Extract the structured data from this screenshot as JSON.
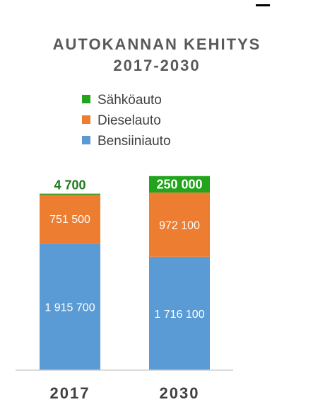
{
  "chart_data": {
    "type": "bar",
    "stacked": true,
    "title_lines": [
      "AUTOKANNAN KEHITYS",
      "2017-2030"
    ],
    "categories": [
      "2017",
      "2030"
    ],
    "series": [
      {
        "name": "Bensiiniauto",
        "color": "#5b9bd5",
        "values": [
          1915700,
          1716100
        ],
        "value_labels": [
          "1 915 700",
          "1 716 100"
        ]
      },
      {
        "name": "Dieselauto",
        "color": "#ed7d31",
        "values": [
          751500,
          972100
        ],
        "value_labels": [
          "751 500",
          "972 100"
        ]
      },
      {
        "name": "Sähköauto",
        "color": "#22a41c",
        "values": [
          4700,
          250000
        ],
        "value_labels": [
          "4 700",
          "250 000"
        ]
      }
    ],
    "legend_order": [
      "Sähköauto",
      "Dieselauto",
      "Bensiiniauto"
    ],
    "legend_position": "top",
    "ylim": [
      0,
      3000000
    ],
    "grid": false
  }
}
